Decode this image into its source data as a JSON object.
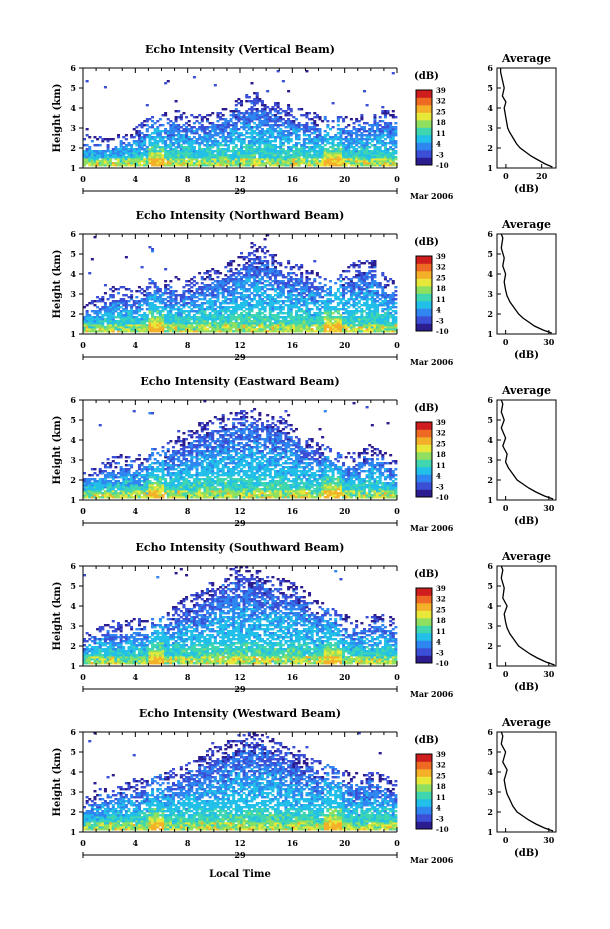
{
  "colorbar": {
    "unit_label": "(dB)",
    "ticks": [
      "39",
      "32",
      "25",
      "18",
      "11",
      "4",
      "-3",
      "-10"
    ],
    "range": [
      -10,
      39
    ],
    "colors": [
      "#2b1c8f",
      "#3a4fd6",
      "#2f86f0",
      "#22bfe8",
      "#3fd6b0",
      "#8fe060",
      "#e8e83a",
      "#f5b02a",
      "#ee6a24",
      "#d01e1e"
    ]
  },
  "bottom_axis": {
    "ticks": [
      "0",
      "4",
      "8",
      "12",
      "16",
      "20",
      "0"
    ],
    "day_label": "29",
    "month_label": "Mar 2006",
    "xlabel": "Local Time"
  },
  "chart_data": [
    {
      "type": "heatmap",
      "title": "Echo Intensity (Vertical Beam)",
      "ylabel": "Height (km)",
      "ylim": [
        1,
        6
      ],
      "yticks": [
        "1",
        "2",
        "3",
        "4",
        "5",
        "6"
      ],
      "xlim": [
        0,
        24
      ],
      "top_heights": [
        2.4,
        2.3,
        2.2,
        2.5,
        2.8,
        3.3,
        3.4,
        3.6,
        3.5,
        3.4,
        3.5,
        3.8,
        4.2,
        4.6,
        4.3,
        4.0,
        3.8,
        3.6,
        3.4,
        3.2,
        3.3,
        3.4,
        3.6,
        3.8,
        3.5
      ],
      "average": {
        "title": "Average",
        "xlabel": "(dB)",
        "xticks": [
          "0",
          "20"
        ],
        "xlim": [
          -5,
          28
        ],
        "ylim": [
          1,
          6
        ],
        "yticks": [
          "1",
          "2",
          "3",
          "4",
          "5",
          "6"
        ],
        "profile": [
          [
            1.05,
            26
          ],
          [
            1.2,
            22
          ],
          [
            1.4,
            18
          ],
          [
            1.6,
            14
          ],
          [
            1.8,
            11
          ],
          [
            2.0,
            8
          ],
          [
            2.2,
            6
          ],
          [
            2.5,
            4
          ],
          [
            2.8,
            2
          ],
          [
            3.0,
            1
          ],
          [
            3.5,
            0
          ],
          [
            4.0,
            -1
          ],
          [
            4.3,
            0
          ],
          [
            4.6,
            -2
          ],
          [
            5.0,
            -1
          ],
          [
            5.4,
            -2
          ],
          [
            5.8,
            -3
          ],
          [
            6.0,
            -3
          ]
        ]
      }
    },
    {
      "type": "heatmap",
      "title": "Echo Intensity (Northward Beam)",
      "ylabel": "Height (km)",
      "ylim": [
        1,
        6
      ],
      "yticks": [
        "1",
        "2",
        "3",
        "4",
        "5",
        "6"
      ],
      "xlim": [
        0,
        24
      ],
      "top_heights": [
        2.2,
        2.6,
        3.0,
        3.2,
        2.9,
        3.5,
        3.3,
        3.6,
        3.4,
        3.8,
        4.0,
        4.2,
        4.8,
        5.2,
        4.9,
        4.6,
        4.3,
        4.1,
        3.8,
        3.4,
        3.9,
        4.4,
        4.6,
        3.8,
        3.3
      ],
      "average": {
        "title": "Average",
        "xlabel": "(dB)",
        "xticks": [
          "0",
          "30"
        ],
        "xlim": [
          -6,
          35
        ],
        "ylim": [
          1,
          6
        ],
        "yticks": [
          "1",
          "2",
          "3",
          "4",
          "5",
          "6"
        ],
        "profile": [
          [
            1.05,
            32
          ],
          [
            1.2,
            26
          ],
          [
            1.4,
            20
          ],
          [
            1.6,
            16
          ],
          [
            1.8,
            12
          ],
          [
            2.0,
            9
          ],
          [
            2.3,
            6
          ],
          [
            2.6,
            3
          ],
          [
            2.9,
            1
          ],
          [
            3.2,
            0
          ],
          [
            3.6,
            -1
          ],
          [
            4.0,
            0
          ],
          [
            4.4,
            -2
          ],
          [
            4.8,
            -1
          ],
          [
            5.3,
            -3
          ],
          [
            5.8,
            -2
          ],
          [
            6.0,
            -3
          ]
        ]
      }
    },
    {
      "type": "heatmap",
      "title": "Echo Intensity (Eastward Beam)",
      "ylabel": "Height (km)",
      "ylim": [
        1,
        6
      ],
      "yticks": [
        "1",
        "2",
        "3",
        "4",
        "5",
        "6"
      ],
      "xlim": [
        0,
        24
      ],
      "top_heights": [
        2.2,
        2.4,
        2.8,
        3.0,
        2.9,
        3.2,
        3.4,
        3.8,
        4.2,
        4.6,
        4.9,
        5.0,
        5.2,
        5.3,
        5.1,
        4.9,
        4.5,
        4.0,
        3.6,
        3.3,
        3.0,
        3.2,
        3.5,
        3.2,
        2.8
      ],
      "average": {
        "title": "Average",
        "xlabel": "(dB)",
        "xticks": [
          "0",
          "30"
        ],
        "xlim": [
          -6,
          35
        ],
        "ylim": [
          1,
          6
        ],
        "yticks": [
          "1",
          "2",
          "3",
          "4",
          "5",
          "6"
        ],
        "profile": [
          [
            1.05,
            33
          ],
          [
            1.2,
            27
          ],
          [
            1.4,
            21
          ],
          [
            1.6,
            16
          ],
          [
            1.8,
            12
          ],
          [
            2.0,
            8
          ],
          [
            2.3,
            5
          ],
          [
            2.6,
            2
          ],
          [
            2.9,
            0
          ],
          [
            3.3,
            1
          ],
          [
            3.7,
            -2
          ],
          [
            4.1,
            0
          ],
          [
            4.6,
            -3
          ],
          [
            5.0,
            -1
          ],
          [
            5.4,
            -3
          ],
          [
            5.8,
            -2
          ],
          [
            6.0,
            -3
          ]
        ]
      }
    },
    {
      "type": "heatmap",
      "title": "Echo Intensity (Southward Beam)",
      "ylabel": "Height (km)",
      "ylim": [
        1,
        6
      ],
      "yticks": [
        "1",
        "2",
        "3",
        "4",
        "5",
        "6"
      ],
      "xlim": [
        0,
        24
      ],
      "top_heights": [
        2.2,
        2.8,
        3.0,
        2.9,
        3.1,
        3.0,
        3.3,
        3.8,
        4.2,
        4.6,
        5.0,
        5.5,
        5.8,
        5.6,
        5.4,
        5.2,
        5.0,
        4.6,
        4.0,
        3.6,
        3.3,
        3.1,
        3.2,
        3.4,
        3.0
      ],
      "average": {
        "title": "Average",
        "xlabel": "(dB)",
        "xticks": [
          "0",
          "30"
        ],
        "xlim": [
          -6,
          35
        ],
        "ylim": [
          1,
          6
        ],
        "yticks": [
          "1",
          "2",
          "3",
          "4",
          "5",
          "6"
        ],
        "profile": [
          [
            1.05,
            34
          ],
          [
            1.2,
            28
          ],
          [
            1.4,
            22
          ],
          [
            1.6,
            17
          ],
          [
            1.8,
            13
          ],
          [
            2.0,
            9
          ],
          [
            2.3,
            6
          ],
          [
            2.6,
            3
          ],
          [
            2.9,
            1
          ],
          [
            3.2,
            0
          ],
          [
            3.6,
            -1
          ],
          [
            4.0,
            1
          ],
          [
            4.4,
            -2
          ],
          [
            4.9,
            -1
          ],
          [
            5.4,
            -3
          ],
          [
            5.8,
            -2
          ],
          [
            6.0,
            -3
          ]
        ]
      }
    },
    {
      "type": "heatmap",
      "title": "Echo Intensity (Westward Beam)",
      "ylabel": "Height (km)",
      "ylim": [
        1,
        6
      ],
      "yticks": [
        "1",
        "2",
        "3",
        "4",
        "5",
        "6"
      ],
      "xlim": [
        0,
        24
      ],
      "top_heights": [
        2.4,
        2.8,
        3.0,
        3.2,
        3.4,
        3.5,
        3.6,
        3.9,
        4.2,
        4.6,
        5.0,
        5.3,
        5.6,
        5.8,
        5.5,
        5.3,
        5.0,
        4.6,
        4.3,
        4.0,
        3.8,
        3.6,
        3.8,
        3.6,
        3.3
      ],
      "average": {
        "title": "Average",
        "xlabel": "(dB)",
        "xticks": [
          "0",
          "30"
        ],
        "xlim": [
          -6,
          35
        ],
        "ylim": [
          1,
          6
        ],
        "yticks": [
          "1",
          "2",
          "3",
          "4",
          "5",
          "6"
        ],
        "profile": [
          [
            1.05,
            33
          ],
          [
            1.2,
            27
          ],
          [
            1.4,
            21
          ],
          [
            1.6,
            16
          ],
          [
            1.8,
            12
          ],
          [
            2.0,
            8
          ],
          [
            2.3,
            5
          ],
          [
            2.6,
            3
          ],
          [
            2.9,
            1
          ],
          [
            3.2,
            0
          ],
          [
            3.6,
            -1
          ],
          [
            4.1,
            1
          ],
          [
            4.5,
            -2
          ],
          [
            5.0,
            0
          ],
          [
            5.4,
            -3
          ],
          [
            5.8,
            -2
          ],
          [
            6.0,
            -3
          ]
        ]
      }
    }
  ]
}
